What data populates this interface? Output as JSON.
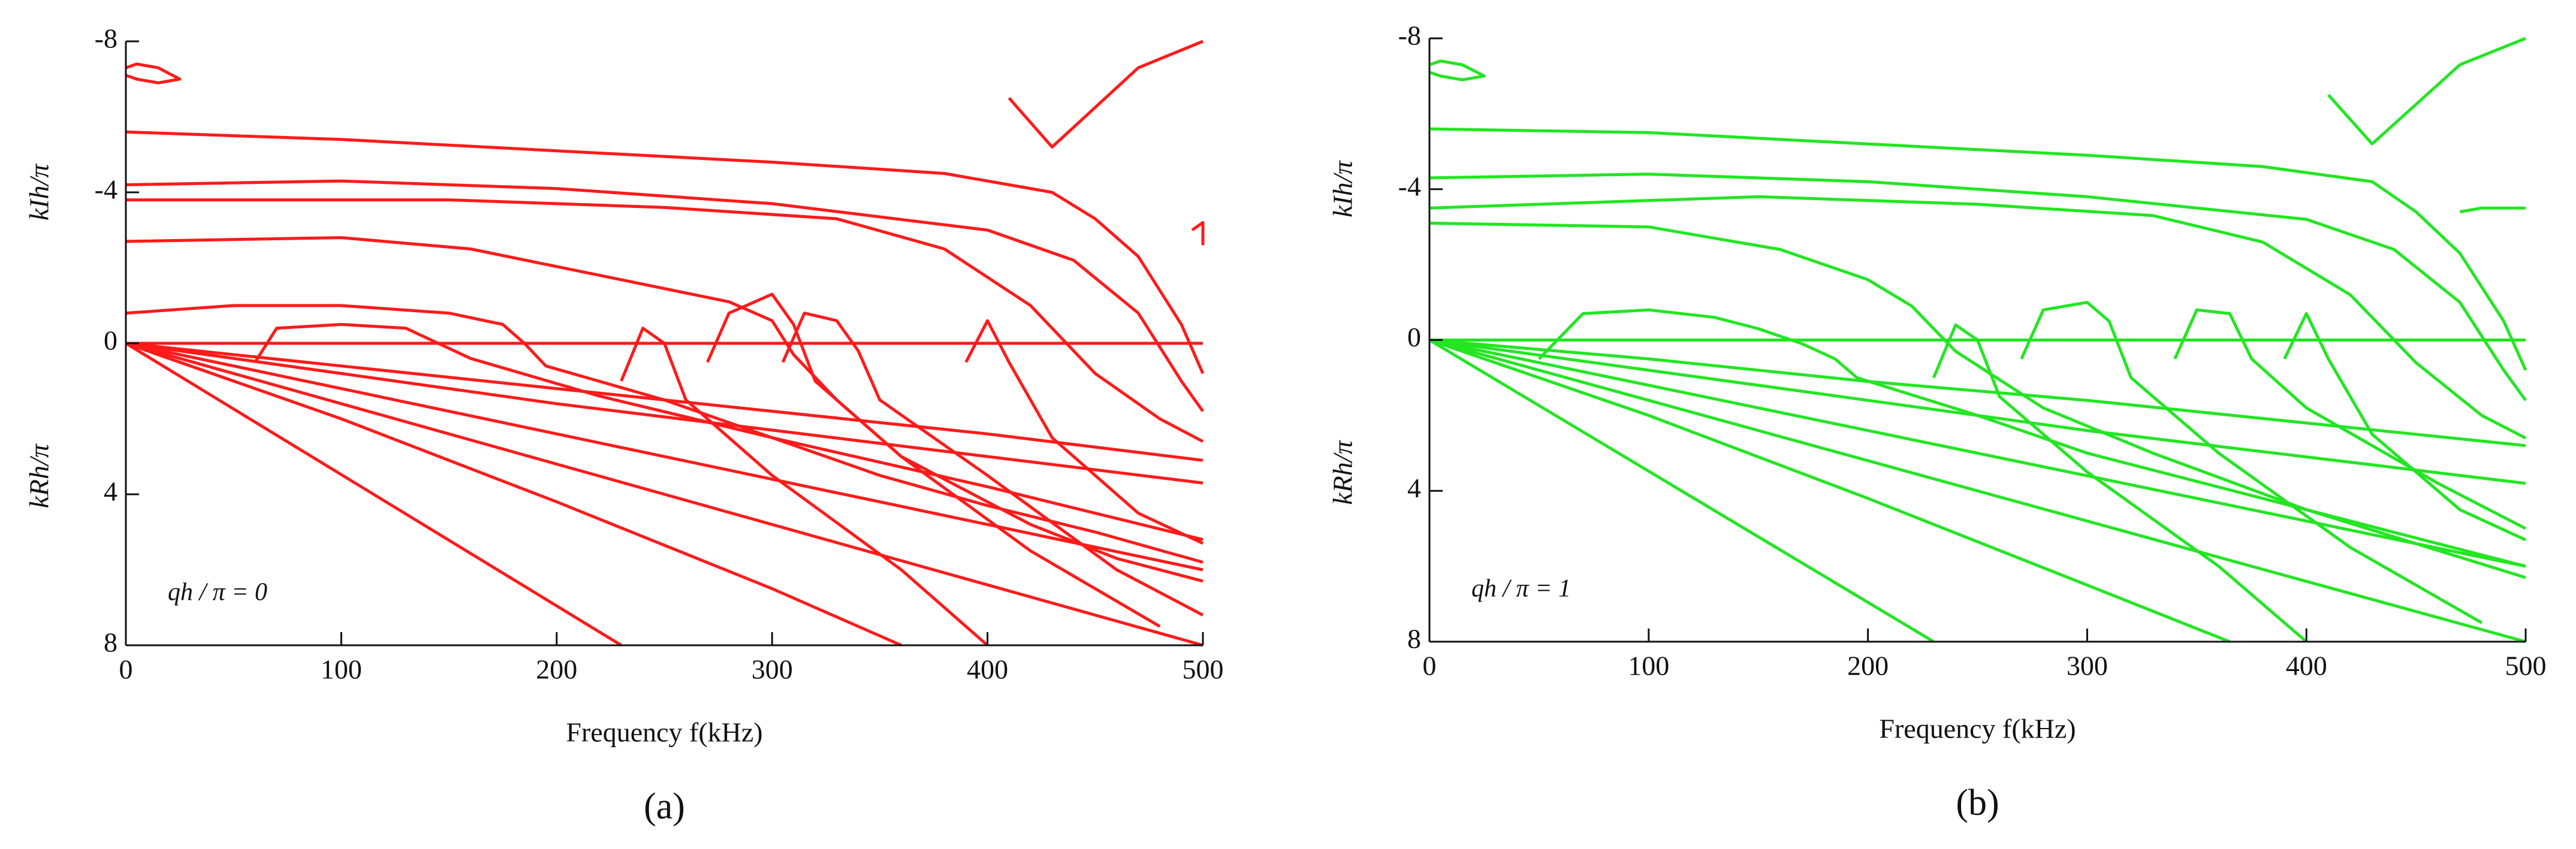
{
  "chart_data": [
    {
      "type": "line",
      "panel_label": "(a)",
      "xlabel": "Frequency  f(kHz)",
      "ylabel_top": "kIh/π",
      "ylabel_bottom": "kRh/π",
      "annotation": "qh / π = 0",
      "xlim": [
        0,
        500
      ],
      "xticks": [
        0,
        100,
        200,
        300,
        400,
        500
      ],
      "ylim": [
        -8,
        8
      ],
      "y_inverted": true,
      "yticks": [
        -8,
        -4,
        0,
        4,
        8
      ],
      "series": [
        {
          "color": "#ff1a1a",
          "x": [
            0,
            500
          ],
          "values": [
            0,
            0
          ]
        },
        {
          "color": "#ff1a1a",
          "x": [
            0,
            5,
            15,
            25,
            15,
            5,
            0
          ],
          "values": [
            -7.3,
            -7.4,
            -7.3,
            -7.0,
            -6.9,
            -7.0,
            -7.1
          ]
        },
        {
          "color": "#ff1a1a",
          "x": [
            0,
            100,
            200,
            300,
            380,
            430,
            450,
            470,
            490,
            500
          ],
          "values": [
            -5.6,
            -5.4,
            -5.1,
            -4.8,
            -4.5,
            -4.0,
            -3.3,
            -2.3,
            -0.5,
            0.8
          ]
        },
        {
          "color": "#ff1a1a",
          "x": [
            0,
            100,
            200,
            300,
            400,
            440,
            470,
            490,
            500
          ],
          "values": [
            -4.2,
            -4.3,
            -4.1,
            -3.7,
            -3.0,
            -2.2,
            -0.8,
            1.0,
            1.8
          ]
        },
        {
          "color": "#ff1a1a",
          "x": [
            0,
            150,
            250,
            330,
            380,
            420,
            450,
            480,
            500
          ],
          "values": [
            -3.8,
            -3.8,
            -3.6,
            -3.3,
            -2.5,
            -1.0,
            0.8,
            2.0,
            2.6
          ]
        },
        {
          "color": "#ff1a1a",
          "x": [
            0,
            100,
            160,
            220,
            280,
            300,
            310,
            330,
            360,
            420,
            460,
            500
          ],
          "values": [
            -2.7,
            -2.8,
            -2.5,
            -1.8,
            -1.1,
            -0.6,
            0.3,
            1.5,
            3.0,
            4.8,
            5.7,
            6.3
          ]
        },
        {
          "color": "#ff1a1a",
          "x": [
            0,
            50,
            100,
            150,
            175,
            185,
            195,
            250,
            300,
            350,
            400,
            450,
            500
          ],
          "values": [
            -0.8,
            -1.0,
            -1.0,
            -0.8,
            -0.5,
            0.0,
            0.6,
            1.5,
            2.5,
            3.5,
            4.3,
            5.0,
            5.8
          ]
        },
        {
          "color": "#ff1a1a",
          "x": [
            60,
            70,
            100,
            130,
            145,
            160,
            220,
            300,
            400,
            500
          ],
          "values": [
            0.5,
            -0.4,
            -0.5,
            -0.4,
            0,
            0.4,
            1.4,
            2.5,
            3.8,
            5.2
          ]
        },
        {
          "color": "#ff1a1a",
          "x": [
            230,
            240,
            250,
            260,
            300,
            360,
            400
          ],
          "values": [
            1.0,
            -0.4,
            0.0,
            1.5,
            3.5,
            6.0,
            8.0
          ]
        },
        {
          "color": "#ff1a1a",
          "x": [
            270,
            280,
            300,
            310,
            320,
            360,
            420,
            480
          ],
          "values": [
            0.5,
            -0.8,
            -1.3,
            -0.5,
            1.0,
            3.0,
            5.5,
            7.5
          ]
        },
        {
          "color": "#ff1a1a",
          "x": [
            305,
            315,
            330,
            340,
            350,
            400,
            460,
            500
          ],
          "values": [
            0.5,
            -0.8,
            -0.6,
            0.2,
            1.5,
            3.5,
            6.0,
            7.2
          ]
        },
        {
          "color": "#ff1a1a",
          "x": [
            390,
            400,
            410,
            430,
            470,
            500
          ],
          "values": [
            0.5,
            -0.6,
            0.5,
            2.5,
            4.5,
            5.3
          ]
        },
        {
          "color": "#ff1a1a",
          "x": [
            410,
            430,
            470,
            500
          ],
          "values": [
            -6.5,
            -5.2,
            -7.3,
            -8.0
          ]
        },
        {
          "color": "#ff1a1a",
          "x": [
            495,
            500,
            500
          ],
          "values": [
            -3.0,
            -3.2,
            -2.6
          ]
        },
        {
          "color": "#ff1a1a",
          "x": [
            0,
            230
          ],
          "values": [
            0,
            8
          ]
        },
        {
          "color": "#ff1a1a",
          "x": [
            0,
            100,
            200,
            300,
            360
          ],
          "values": [
            0,
            2.0,
            4.2,
            6.5,
            8.0
          ]
        },
        {
          "color": "#ff1a1a",
          "x": [
            0,
            100,
            200,
            300,
            400,
            500
          ],
          "values": [
            0,
            1.6,
            3.2,
            4.8,
            6.4,
            8.0
          ]
        },
        {
          "color": "#ff1a1a",
          "x": [
            0,
            100,
            200,
            300,
            400,
            500
          ],
          "values": [
            0,
            1.2,
            2.4,
            3.6,
            4.8,
            6.0
          ]
        },
        {
          "color": "#ff1a1a",
          "x": [
            0,
            100,
            200,
            300,
            400,
            500
          ],
          "values": [
            0,
            0.8,
            1.6,
            2.3,
            3.0,
            3.7
          ]
        },
        {
          "color": "#ff1a1a",
          "x": [
            0,
            100,
            200,
            300,
            400,
            500
          ],
          "values": [
            0,
            0.6,
            1.2,
            1.8,
            2.4,
            3.1
          ]
        }
      ]
    },
    {
      "type": "line",
      "panel_label": "(b)",
      "xlabel": "Frequency  f(kHz)",
      "ylabel_top": "kIh/π",
      "ylabel_bottom": "kRh/π",
      "annotation": "qh / π = 1",
      "xlim": [
        0,
        500
      ],
      "xticks": [
        0,
        100,
        200,
        300,
        400,
        500
      ],
      "ylim": [
        -8,
        8
      ],
      "y_inverted": true,
      "yticks": [
        -8,
        -4,
        0,
        4,
        8
      ],
      "series": [
        {
          "color": "#22e622",
          "x": [
            0,
            500
          ],
          "values": [
            0,
            0
          ]
        },
        {
          "color": "#22e622",
          "x": [
            0,
            5,
            15,
            25,
            15,
            5,
            0
          ],
          "values": [
            -7.3,
            -7.4,
            -7.3,
            -7.0,
            -6.9,
            -7.0,
            -7.1
          ]
        },
        {
          "color": "#22e622",
          "x": [
            0,
            100,
            200,
            300,
            380,
            430,
            450,
            470,
            490,
            500
          ],
          "values": [
            -5.6,
            -5.5,
            -5.2,
            -4.9,
            -4.6,
            -4.2,
            -3.4,
            -2.3,
            -0.5,
            0.8
          ]
        },
        {
          "color": "#22e622",
          "x": [
            0,
            100,
            200,
            300,
            400,
            440,
            470,
            490,
            500
          ],
          "values": [
            -4.3,
            -4.4,
            -4.2,
            -3.8,
            -3.2,
            -2.4,
            -1.0,
            0.8,
            1.6
          ]
        },
        {
          "color": "#22e622",
          "x": [
            0,
            150,
            250,
            330,
            380,
            420,
            450,
            480,
            500
          ],
          "values": [
            -3.5,
            -3.8,
            -3.6,
            -3.3,
            -2.6,
            -1.2,
            0.6,
            2.0,
            2.6
          ]
        },
        {
          "color": "#22e622",
          "x": [
            0,
            100,
            160,
            200,
            220,
            240,
            280,
            330,
            400,
            500
          ],
          "values": [
            -3.1,
            -3.0,
            -2.4,
            -1.6,
            -0.9,
            0.3,
            1.8,
            3.0,
            4.5,
            6.3
          ]
        },
        {
          "color": "#22e622",
          "x": [
            50,
            70,
            100,
            130,
            150,
            170,
            185,
            195,
            250,
            300,
            400,
            500
          ],
          "values": [
            0.5,
            -0.7,
            -0.8,
            -0.6,
            -0.3,
            0.1,
            0.5,
            1.0,
            2.0,
            3.0,
            4.5,
            6.0
          ]
        },
        {
          "color": "#22e622",
          "x": [
            230,
            240,
            250,
            260,
            300,
            360,
            400
          ],
          "values": [
            1.0,
            -0.4,
            0.0,
            1.5,
            3.5,
            6.0,
            8.0
          ]
        },
        {
          "color": "#22e622",
          "x": [
            270,
            280,
            300,
            310,
            320,
            360,
            420,
            480
          ],
          "values": [
            0.5,
            -0.8,
            -1.0,
            -0.5,
            1.0,
            3.0,
            5.5,
            7.5
          ]
        },
        {
          "color": "#22e622",
          "x": [
            340,
            350,
            365,
            375,
            400,
            460,
            500
          ],
          "values": [
            0.5,
            -0.8,
            -0.7,
            0.5,
            1.8,
            3.8,
            5.0
          ]
        },
        {
          "color": "#22e622",
          "x": [
            390,
            400,
            410,
            430,
            470,
            500
          ],
          "values": [
            0.5,
            -0.7,
            0.5,
            2.5,
            4.5,
            5.3
          ]
        },
        {
          "color": "#22e622",
          "x": [
            410,
            430,
            470,
            500
          ],
          "values": [
            -6.5,
            -5.2,
            -7.3,
            -8.0
          ]
        },
        {
          "color": "#22e622",
          "x": [
            470,
            480,
            500
          ],
          "values": [
            -3.4,
            -3.5,
            -3.5
          ]
        },
        {
          "color": "#22e622",
          "x": [
            0,
            230
          ],
          "values": [
            0,
            8
          ]
        },
        {
          "color": "#22e622",
          "x": [
            0,
            100,
            200,
            300,
            365
          ],
          "values": [
            0,
            2.0,
            4.2,
            6.5,
            8.0
          ]
        },
        {
          "color": "#22e622",
          "x": [
            0,
            100,
            200,
            300,
            400,
            500
          ],
          "values": [
            0,
            1.6,
            3.2,
            4.8,
            6.4,
            8.0
          ]
        },
        {
          "color": "#22e622",
          "x": [
            0,
            100,
            200,
            300,
            400,
            500
          ],
          "values": [
            0,
            1.2,
            2.4,
            3.6,
            4.8,
            6.0
          ]
        },
        {
          "color": "#22e622",
          "x": [
            0,
            100,
            200,
            300,
            400,
            500
          ],
          "values": [
            0,
            0.8,
            1.6,
            2.4,
            3.1,
            3.8
          ]
        },
        {
          "color": "#22e622",
          "x": [
            0,
            100,
            200,
            300,
            400,
            500
          ],
          "values": [
            0,
            0.5,
            1.1,
            1.6,
            2.2,
            2.8
          ]
        }
      ]
    }
  ]
}
